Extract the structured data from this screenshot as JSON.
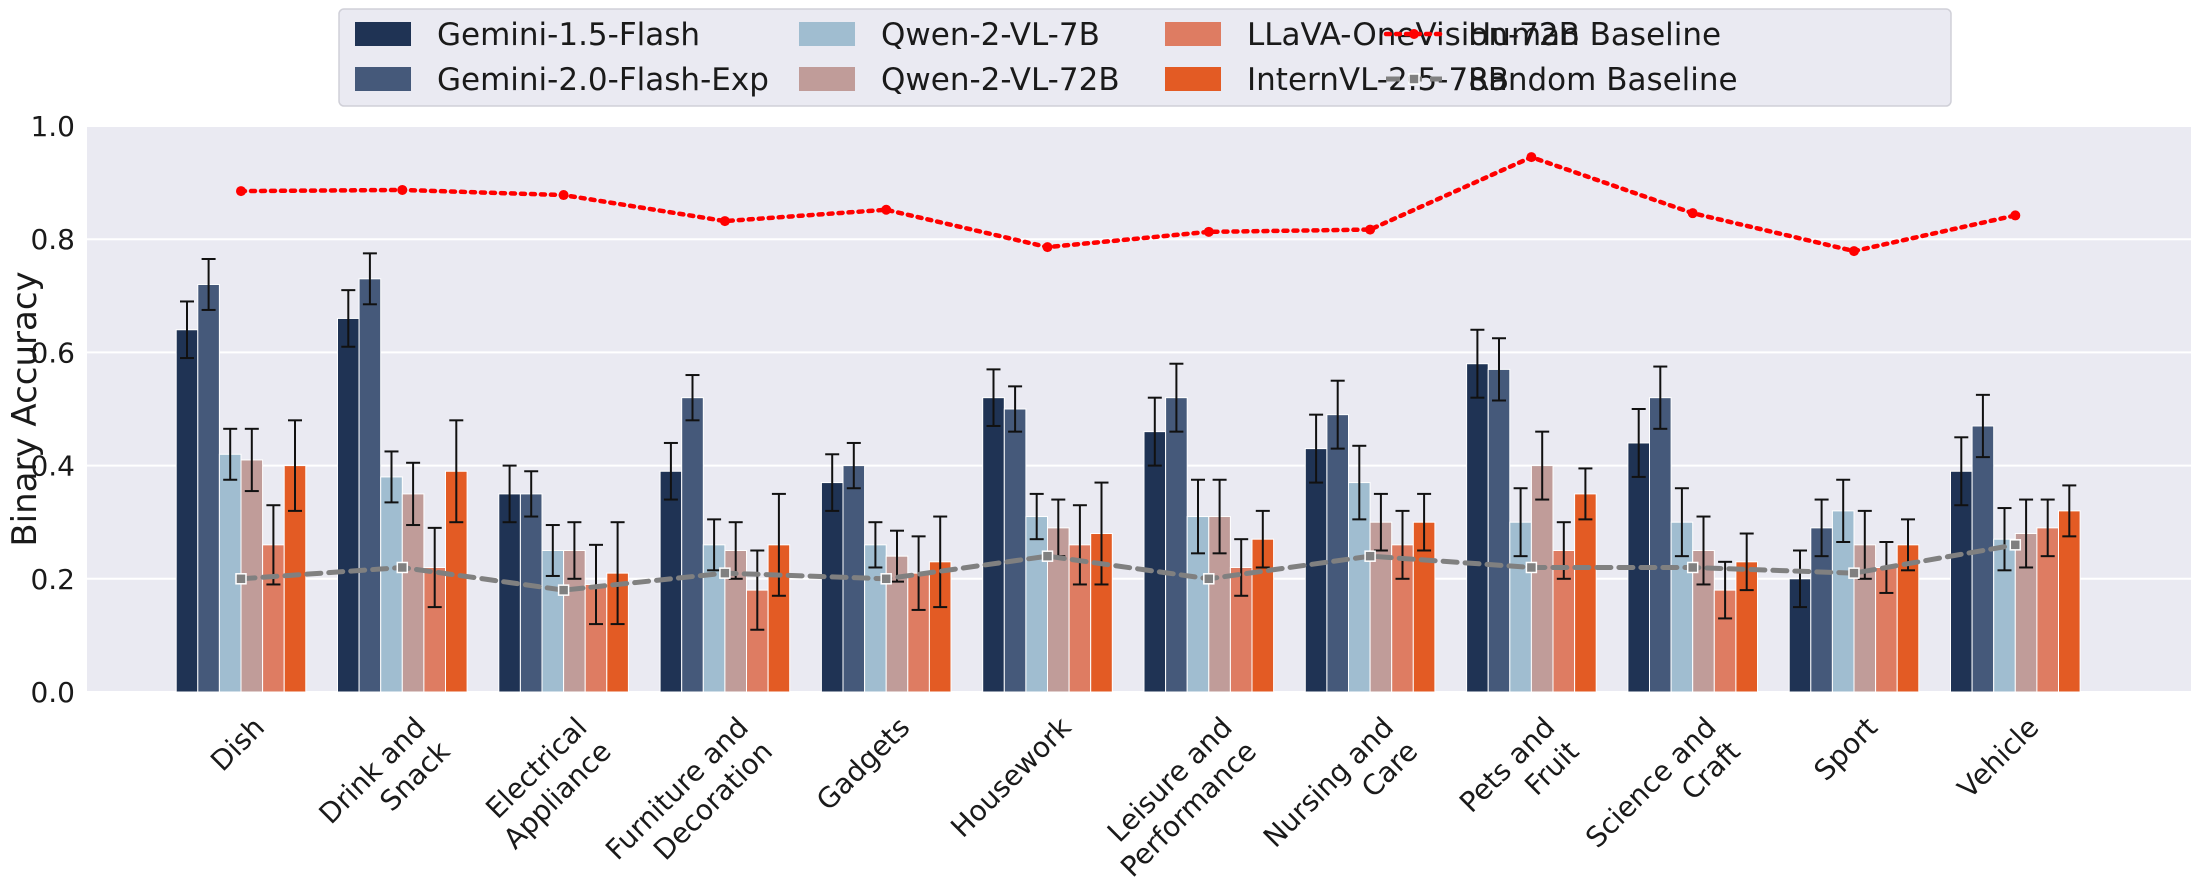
{
  "chart_data": {
    "type": "bar",
    "ylabel": "Binary Accuracy",
    "ylim": [
      0,
      1
    ],
    "yticks": [
      "0.0",
      "0.2",
      "0.4",
      "0.6",
      "0.8",
      "1.0"
    ],
    "categories": [
      [
        "Dish"
      ],
      [
        "Drink and",
        "Snack"
      ],
      [
        "Electrical",
        "Appliance"
      ],
      [
        "Furniture and",
        "Decoration"
      ],
      [
        "Gadgets"
      ],
      [
        "Housework"
      ],
      [
        "Leisure and",
        "Performance"
      ],
      [
        "Nursing and",
        "Care"
      ],
      [
        "Pets and",
        "Fruit"
      ],
      [
        "Science and",
        "Craft"
      ],
      [
        "Sport"
      ],
      [
        "Vehicle"
      ]
    ],
    "series": [
      {
        "name": "Gemini-1.5-Flash",
        "color": "#1f3354",
        "values": [
          0.64,
          0.66,
          0.35,
          0.39,
          0.37,
          0.52,
          0.46,
          0.43,
          0.58,
          0.44,
          0.2,
          0.39
        ],
        "errors": [
          0.05,
          0.05,
          0.05,
          0.05,
          0.05,
          0.05,
          0.06,
          0.06,
          0.06,
          0.06,
          0.05,
          0.06
        ]
      },
      {
        "name": "Gemini-2.0-Flash-Exp",
        "color": "#45597a",
        "values": [
          0.72,
          0.73,
          0.35,
          0.52,
          0.4,
          0.5,
          0.52,
          0.49,
          0.57,
          0.52,
          0.29,
          0.47
        ],
        "errors": [
          0.045,
          0.045,
          0.04,
          0.04,
          0.04,
          0.04,
          0.06,
          0.06,
          0.055,
          0.055,
          0.05,
          0.055
        ]
      },
      {
        "name": "Qwen-2-VL-7B",
        "color": "#a0bdd0",
        "values": [
          0.42,
          0.38,
          0.25,
          0.26,
          0.26,
          0.31,
          0.31,
          0.37,
          0.3,
          0.3,
          0.32,
          0.27
        ],
        "errors": [
          0.045,
          0.045,
          0.045,
          0.045,
          0.04,
          0.04,
          0.065,
          0.065,
          0.06,
          0.06,
          0.055,
          0.055
        ]
      },
      {
        "name": "Qwen-2-VL-72B",
        "color": "#c09c99",
        "values": [
          0.41,
          0.35,
          0.25,
          0.25,
          0.24,
          0.29,
          0.31,
          0.3,
          0.4,
          0.25,
          0.26,
          0.28
        ],
        "errors": [
          0.055,
          0.055,
          0.05,
          0.05,
          0.045,
          0.05,
          0.065,
          0.05,
          0.06,
          0.06,
          0.06,
          0.06
        ]
      },
      {
        "name": "LLaVA-OneVision-72B",
        "color": "#de7c62",
        "values": [
          0.26,
          0.22,
          0.19,
          0.18,
          0.21,
          0.26,
          0.22,
          0.26,
          0.25,
          0.18,
          0.22,
          0.29
        ],
        "errors": [
          0.07,
          0.07,
          0.07,
          0.07,
          0.065,
          0.07,
          0.05,
          0.06,
          0.05,
          0.05,
          0.045,
          0.05
        ]
      },
      {
        "name": "InternVL-2.5-78B",
        "color": "#e35b24",
        "values": [
          0.4,
          0.39,
          0.21,
          0.26,
          0.23,
          0.28,
          0.27,
          0.3,
          0.35,
          0.23,
          0.26,
          0.32
        ],
        "errors": [
          0.08,
          0.09,
          0.09,
          0.09,
          0.08,
          0.09,
          0.05,
          0.05,
          0.045,
          0.05,
          0.045,
          0.045
        ]
      }
    ],
    "lines": [
      {
        "name": "Human Baseline",
        "color": "#ff0000",
        "style": "dotted",
        "values": [
          0.885,
          0.887,
          0.878,
          0.832,
          0.852,
          0.786,
          0.813,
          0.817,
          0.945,
          0.846,
          0.779,
          0.842
        ]
      },
      {
        "name": "Random Baseline",
        "color": "#808080",
        "style": "dashed",
        "values": [
          0.2,
          0.22,
          0.18,
          0.21,
          0.2,
          0.24,
          0.2,
          0.24,
          0.22,
          0.22,
          0.21,
          0.26
        ]
      }
    ],
    "legend_location": "top-center, outside plot"
  }
}
